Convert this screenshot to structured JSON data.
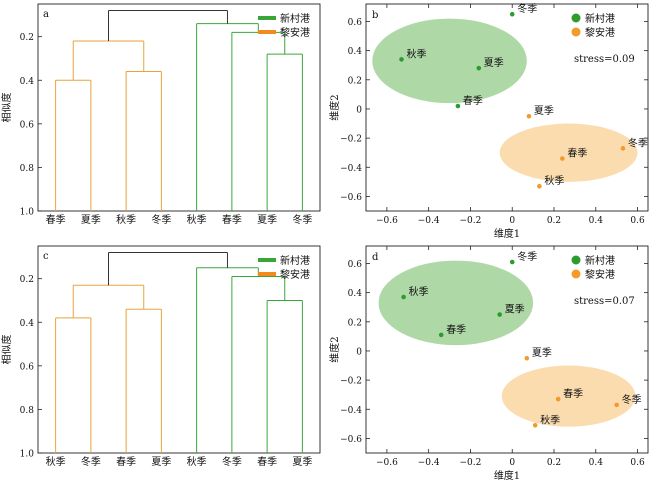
{
  "colors": {
    "green": "#2e9b2e",
    "orange": "#f39a2b",
    "dendro_green": "#3aa63a",
    "dendro_orange": "#e8a33a",
    "root": "#333333",
    "ellipse_green": "#a8d5a0",
    "ellipse_orange": "#fbd9a8"
  },
  "chart_data": [
    {
      "type": "dendrogram",
      "panel": "a",
      "ylabel": "相似度",
      "yticks": [
        0.2,
        0.4,
        0.6,
        0.8,
        1.0
      ],
      "ylim": [
        0.05,
        1.0
      ],
      "legend": [
        "新村港",
        "黎安港"
      ],
      "leaves": [
        "春季",
        "夏季",
        "秋季",
        "冬季",
        "秋季",
        "春季",
        "夏季",
        "冬季"
      ],
      "groups": [
        {
          "site": "黎安港",
          "color": "orange",
          "leaves": [
            0,
            1,
            2,
            3
          ],
          "merges": [
            {
              "a": [
                0,
                1
              ],
              "h": 0.4
            },
            {
              "a": [
                2,
                3
              ],
              "h": 0.36
            },
            {
              "pair": true,
              "h": 0.22
            }
          ]
        },
        {
          "site": "新村港",
          "color": "green",
          "leaves": [
            4,
            5,
            6,
            7
          ],
          "merges": [
            {
              "a": [
                6,
                7
              ],
              "h": 0.28
            },
            {
              "a": [
                5,
                "m0"
              ],
              "h": 0.18
            },
            {
              "a": [
                4,
                "m1"
              ],
              "h": 0.14
            }
          ]
        }
      ],
      "root_h": 0.08
    },
    {
      "type": "scatter",
      "panel": "b",
      "xlabel": "维度1",
      "ylabel": "维度2",
      "xlim": [
        -0.7,
        0.65
      ],
      "ylim": [
        -0.7,
        0.72
      ],
      "xticks": [
        -0.6,
        -0.4,
        -0.2,
        0,
        0.2,
        0.4,
        0.6
      ],
      "yticks": [
        -0.6,
        -0.4,
        -0.2,
        0,
        0.2,
        0.4,
        0.6
      ],
      "xtick_labels": [
        "−0.6",
        "−0.4",
        "−0.2",
        "0",
        "0.2",
        "0.4",
        "0.6"
      ],
      "ytick_labels": [
        "−0.6",
        "−0.4",
        "−0.2",
        "0",
        "0.2",
        "0.4",
        "0.6"
      ],
      "stress": "stress=0.09",
      "legend": [
        "新村港",
        "黎安港"
      ],
      "series": [
        {
          "name": "新村港",
          "color": "green",
          "points": [
            {
              "label": "冬季",
              "x": 0.0,
              "y": 0.65
            },
            {
              "label": "秋季",
              "x": -0.53,
              "y": 0.34
            },
            {
              "label": "夏季",
              "x": -0.16,
              "y": 0.28
            },
            {
              "label": "春季",
              "x": -0.26,
              "y": 0.02
            }
          ],
          "ellipse": {
            "cx": -0.3,
            "cy": 0.33,
            "rx": 0.37,
            "ry": 0.29
          }
        },
        {
          "name": "黎安港",
          "color": "orange",
          "points": [
            {
              "label": "夏季",
              "x": 0.08,
              "y": -0.05
            },
            {
              "label": "冬季",
              "x": 0.53,
              "y": -0.27
            },
            {
              "label": "春季",
              "x": 0.24,
              "y": -0.34
            },
            {
              "label": "秋季",
              "x": 0.13,
              "y": -0.53
            }
          ],
          "ellipse": {
            "cx": 0.27,
            "cy": -0.3,
            "rx": 0.33,
            "ry": 0.2
          }
        }
      ]
    },
    {
      "type": "dendrogram",
      "panel": "c",
      "ylabel": "相似度",
      "yticks": [
        0.2,
        0.4,
        0.6,
        0.8,
        1.0
      ],
      "ylim": [
        0.05,
        1.0
      ],
      "legend": [
        "新村港",
        "黎安港"
      ],
      "leaves": [
        "秋季",
        "冬季",
        "春季",
        "夏季",
        "秋季",
        "冬季",
        "春季",
        "夏季"
      ],
      "groups": [
        {
          "site": "黎安港",
          "color": "orange",
          "leaves": [
            0,
            1,
            2,
            3
          ],
          "merges": [
            {
              "a": [
                0,
                1
              ],
              "h": 0.38
            },
            {
              "a": [
                2,
                3
              ],
              "h": 0.34
            },
            {
              "pair": true,
              "h": 0.23
            }
          ]
        },
        {
          "site": "新村港",
          "color": "green",
          "leaves": [
            4,
            5,
            6,
            7
          ],
          "merges": [
            {
              "a": [
                6,
                7
              ],
              "h": 0.3
            },
            {
              "a": [
                5,
                "m0"
              ],
              "h": 0.19
            },
            {
              "a": [
                4,
                "m1"
              ],
              "h": 0.15
            }
          ]
        }
      ],
      "root_h": 0.08
    },
    {
      "type": "scatter",
      "panel": "d",
      "xlabel": "维度1",
      "ylabel": "维度2",
      "xlim": [
        -0.7,
        0.65
      ],
      "ylim": [
        -0.7,
        0.72
      ],
      "xticks": [
        -0.6,
        -0.4,
        -0.2,
        0,
        0.2,
        0.4,
        0.6
      ],
      "yticks": [
        -0.6,
        -0.4,
        -0.2,
        0,
        0.2,
        0.4,
        0.6
      ],
      "xtick_labels": [
        "−0.6",
        "−0.4",
        "−0.2",
        "0",
        "0.2",
        "0.4",
        "0.6"
      ],
      "ytick_labels": [
        "−0.6",
        "−0.4",
        "−0.2",
        "0",
        "0.2",
        "0.4",
        "0.6"
      ],
      "stress": "stress=0.07",
      "legend": [
        "新村港",
        "黎安港"
      ],
      "series": [
        {
          "name": "新村港",
          "color": "green",
          "points": [
            {
              "label": "冬季",
              "x": 0.0,
              "y": 0.61
            },
            {
              "label": "秋季",
              "x": -0.52,
              "y": 0.37
            },
            {
              "label": "夏季",
              "x": -0.06,
              "y": 0.25
            },
            {
              "label": "春季",
              "x": -0.34,
              "y": 0.11
            }
          ],
          "ellipse": {
            "cx": -0.27,
            "cy": 0.33,
            "rx": 0.37,
            "ry": 0.29
          }
        },
        {
          "name": "黎安港",
          "color": "orange",
          "points": [
            {
              "label": "夏季",
              "x": 0.07,
              "y": -0.05
            },
            {
              "label": "冬季",
              "x": 0.5,
              "y": -0.37
            },
            {
              "label": "春季",
              "x": 0.22,
              "y": -0.33
            },
            {
              "label": "秋季",
              "x": 0.11,
              "y": -0.51
            }
          ],
          "ellipse": {
            "cx": 0.27,
            "cy": -0.31,
            "rx": 0.32,
            "ry": 0.21
          }
        }
      ]
    }
  ]
}
